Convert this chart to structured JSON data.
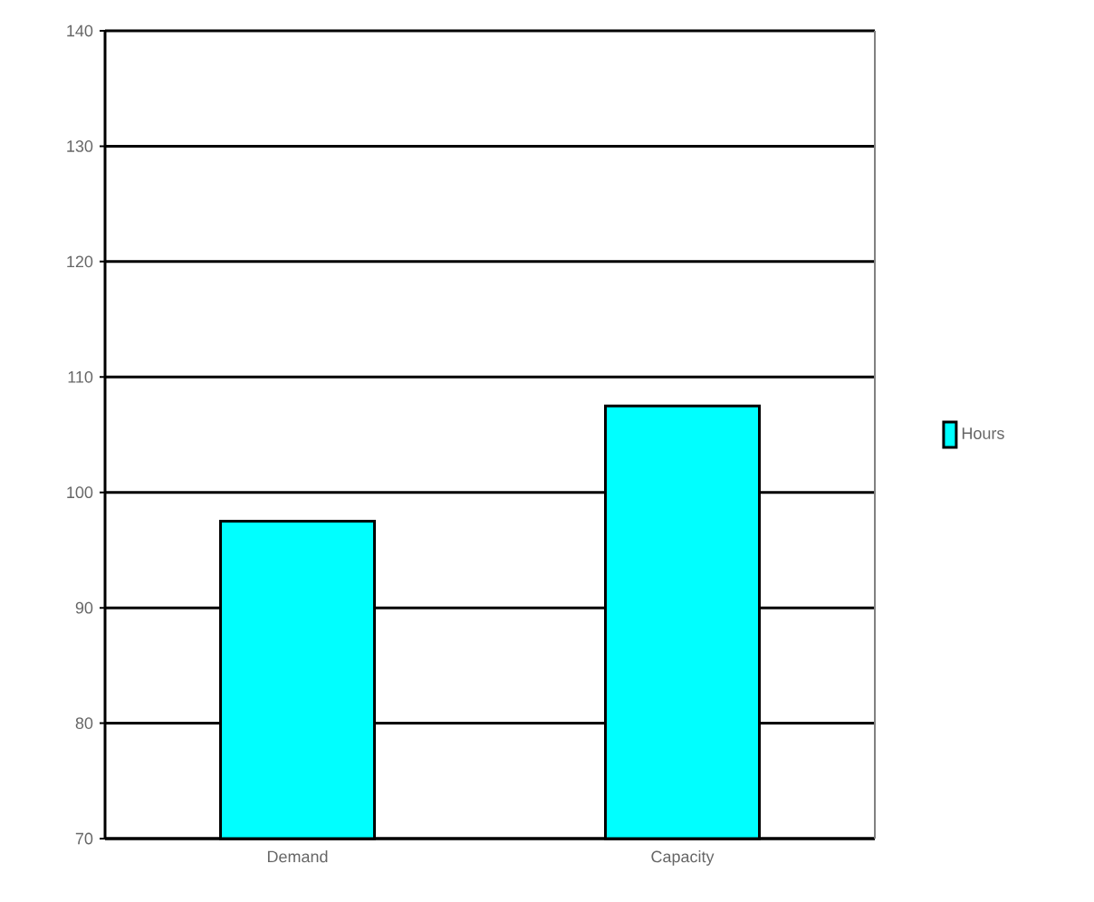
{
  "chart_data": {
    "type": "bar",
    "categories": [
      "Demand",
      "Capacity"
    ],
    "series": [
      {
        "name": "Hours",
        "color": "#00ffff",
        "values": [
          97.5,
          107.5
        ]
      }
    ],
    "ylim": [
      70,
      140
    ],
    "yticks": [
      70,
      80,
      90,
      100,
      110,
      120,
      130,
      140
    ],
    "grid": "y",
    "legend": "right"
  }
}
